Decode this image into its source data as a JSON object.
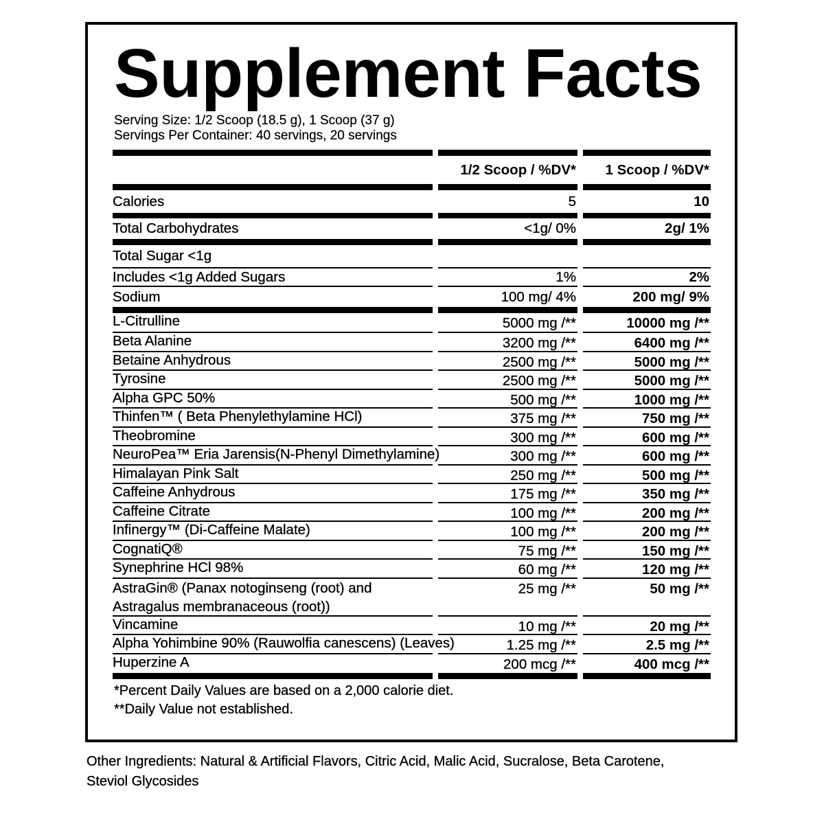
{
  "title": "Supplement Facts",
  "serving_size": "Serving Size: 1/2 Scoop (18.5 g), 1 Scoop (37 g)",
  "servings_per_container": "Servings Per Container: 40 servings, 20 servings",
  "columns": {
    "half": "1/2 Scoop / %DV*",
    "full": "1 Scoop / %DV*"
  },
  "nutrients": [
    {
      "label": "Calories",
      "half": "5",
      "full": "10"
    },
    {
      "label": "Total Carbohydrates",
      "half": "<1g/ 0%",
      "full": "2g/ 1%"
    },
    {
      "label": "Total Sugar <1g",
      "half": "",
      "full": ""
    },
    {
      "label": "Includes <1g Added Sugars",
      "half": "1%",
      "full": "2%"
    },
    {
      "label": "Sodium",
      "half": "100 mg/ 4%",
      "full": "200 mg/ 9%"
    }
  ],
  "ingredients": [
    {
      "label": "L-Citrulline",
      "half": "5000 mg /**",
      "full": "10000 mg /**"
    },
    {
      "label": "Beta Alanine",
      "half": "3200 mg /**",
      "full": "6400 mg /**"
    },
    {
      "label": "Betaine Anhydrous",
      "half": "2500 mg /**",
      "full": "5000 mg /**"
    },
    {
      "label": "Tyrosine",
      "half": "2500 mg /**",
      "full": "5000 mg /**"
    },
    {
      "label": "Alpha GPC 50%",
      "half": "500 mg /**",
      "full": "1000 mg /**"
    },
    {
      "label": "Thinfen™ ( Beta Phenylethylamine HCl)",
      "half": "375 mg /**",
      "full": "750 mg /**"
    },
    {
      "label": "Theobromine",
      "half": "300 mg /**",
      "full": "600 mg /**"
    },
    {
      "label": "NeuroPea™ Eria Jarensis(N-Phenyl Dimethylamine)",
      "half": "300 mg /**",
      "full": "600 mg /**"
    },
    {
      "label": "Himalayan Pink Salt",
      "half": "250 mg /**",
      "full": "500 mg /**"
    },
    {
      "label": "Caffeine Anhydrous",
      "half": "175 mg /**",
      "full": "350 mg /**"
    },
    {
      "label": "Caffeine Citrate",
      "half": "100 mg /**",
      "full": "200 mg /**"
    },
    {
      "label": "Infinergy™ (Di-Caffeine Malate)",
      "half": "100 mg /**",
      "full": "200 mg /**"
    },
    {
      "label": "CognatiQ®",
      "half": "75 mg /**",
      "full": "150 mg /**"
    },
    {
      "label": "Synephrine HCl 98%",
      "half": "60 mg /**",
      "full": "120 mg /**"
    },
    {
      "label": "AstraGin® (Panax notoginseng (root) and Astragalus membranaceous (root))",
      "half": "25 mg /**",
      "full": "50 mg /**"
    },
    {
      "label": "Vincamine",
      "half": "10 mg /**",
      "full": "20 mg /**"
    },
    {
      "label": "Alpha Yohimbine 90% (Rauwolfia canescens) (Leaves)",
      "half": "1.25 mg /**",
      "full": "2.5 mg /**"
    },
    {
      "label": "Huperzine A",
      "half": "200 mcg /**",
      "full": "400 mcg /**"
    }
  ],
  "footnotes": [
    "*Percent Daily Values are based on a 2,000 calorie diet.",
    "**Daily Value not established."
  ],
  "other_ingredients": "Other Ingredients: Natural & Artificial Flavors, Citric Acid, Malic Acid, Sucralose, Beta Carotene, Steviol Glycosides"
}
